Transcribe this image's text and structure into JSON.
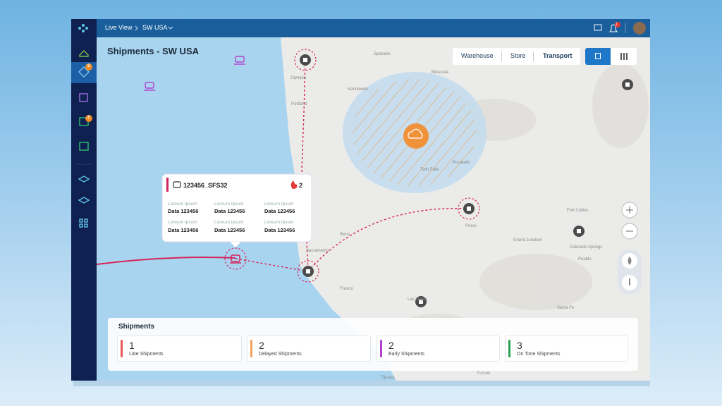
{
  "topbar": {
    "breadcrumb": [
      "Live View",
      "SW USA"
    ],
    "notification_count": 1
  },
  "page_title": "Shipments - SW USA",
  "view_tabs": [
    "Warehouse",
    "Store",
    "Transport"
  ],
  "sidebar_badges": [
    2,
    2
  ],
  "popup": {
    "id": "123456_SFS32",
    "alert_count": 2,
    "fields": [
      {
        "label": "Loreum Ipsum",
        "value": "Data 123456"
      },
      {
        "label": "Loreum Ipsum",
        "value": "Data 123456"
      },
      {
        "label": "Loreum Ipsum",
        "value": "Data 123456"
      },
      {
        "label": "Loreum Ipsum",
        "value": "Data 123456"
      },
      {
        "label": "Loreum Ipsum",
        "value": "Data 123456"
      },
      {
        "label": "Loreum Ipsum",
        "value": "Data 123456"
      }
    ]
  },
  "summary": {
    "title": "Shipments",
    "cards": [
      {
        "count": 1,
        "label": "Late Shipments"
      },
      {
        "count": 2,
        "label": "Delayed Shipments"
      },
      {
        "count": 2,
        "label": "Early Shipments"
      },
      {
        "count": 3,
        "label": "On Time Shipments"
      }
    ]
  },
  "map_places": [
    "Spokane",
    "Missoula",
    "Olympia",
    "Kennewick",
    "Portland",
    "Twin Falls",
    "Pocatello",
    "Provo",
    "Fort Collins",
    "Grand Junction",
    "Colorado Springs",
    "Pueblo",
    "Reno",
    "Sacramento",
    "Fresno",
    "Las Vegas",
    "Santa Fe",
    "Tucson",
    "Tijuana"
  ]
}
